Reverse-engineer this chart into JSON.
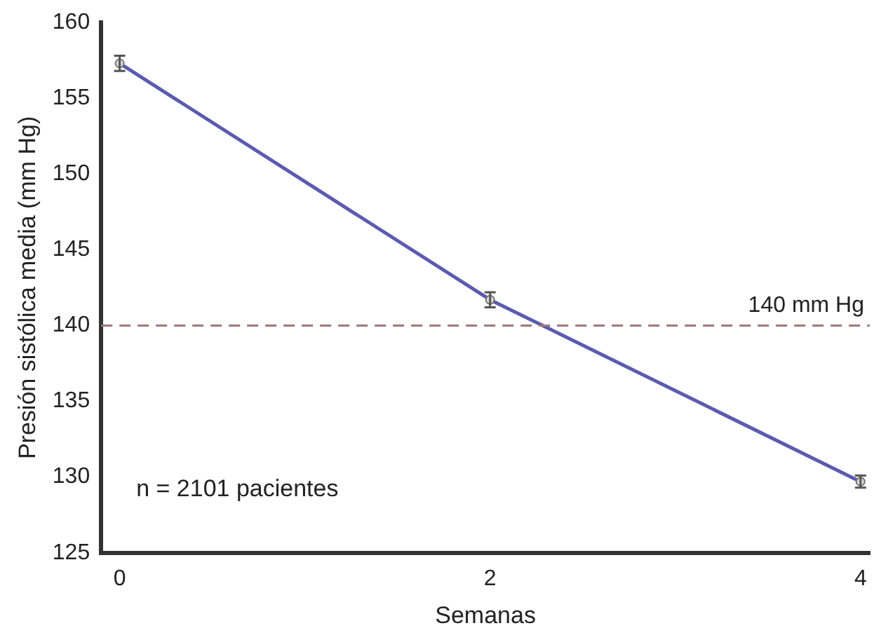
{
  "chart_data": {
    "type": "line",
    "xlabel": "Semanas",
    "ylabel": "Presión sistólica media (mm Hg)",
    "x": [
      0,
      2,
      4
    ],
    "series": [
      {
        "color": "#5b5bb0",
        "values": [
          157.3,
          141.7,
          129.7
        ],
        "errors": [
          0.5,
          0.5,
          0.4
        ]
      }
    ],
    "xlim": [
      -0.1,
      4.05
    ],
    "xticks": [
      0,
      2,
      4
    ],
    "ylim": [
      125,
      160
    ],
    "yticks": [
      125,
      130,
      135,
      140,
      145,
      150,
      155,
      160
    ],
    "ref_lines": [
      {
        "axis": "y",
        "value": 140,
        "label": "140 mm Hg",
        "color": "#a07878",
        "line_style": "dashed"
      }
    ],
    "annotations": [
      "n = 2101 pacientes"
    ],
    "grid": false,
    "legend": false,
    "marker": "circle",
    "line_style": "solid"
  }
}
